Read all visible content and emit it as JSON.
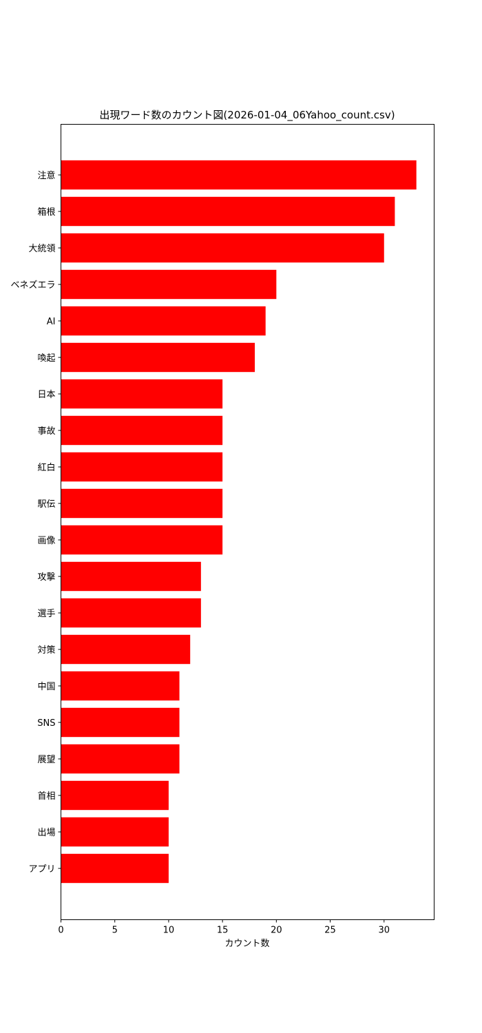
{
  "chart_data": {
    "type": "bar",
    "orientation": "horizontal",
    "title": "出現ワード数のカウント図(2026-01-04_06Yahoo_count.csv)",
    "xlabel": "カウント数",
    "ylabel": "",
    "categories": [
      "注意",
      "箱根",
      "大統領",
      "ベネズエラ",
      "AI",
      "喚起",
      "日本",
      "事故",
      "紅白",
      "駅伝",
      "画像",
      "攻撃",
      "選手",
      "対策",
      "中国",
      "SNS",
      "展望",
      "首相",
      "出場",
      "アプリ"
    ],
    "values": [
      33,
      31,
      30,
      20,
      19,
      18,
      15,
      15,
      15,
      15,
      15,
      13,
      13,
      12,
      11,
      11,
      11,
      10,
      10,
      10
    ],
    "xlim": [
      0,
      34.65
    ],
    "xticks": [
      "0",
      "5",
      "10",
      "15",
      "20",
      "25",
      "30"
    ],
    "bar_color": "#ff0000",
    "grid": false,
    "legend": "none"
  }
}
